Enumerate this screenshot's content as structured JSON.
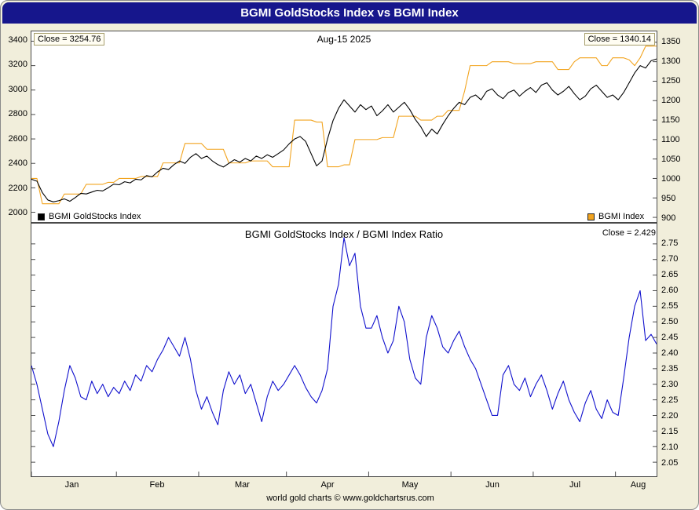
{
  "window": {
    "title": "BGMI GoldStocks Index vs BGMI Index"
  },
  "footer": {
    "text": "world gold charts © www.goldchartsrus.com"
  },
  "colors": {
    "background": "#f1eedb",
    "titlebar": "#16168c",
    "titlebar_text": "#ffffff",
    "plot_background": "#ffffff",
    "plot_border": "#4a4a4a",
    "goldstocks_line": "#000000",
    "bgmi_line": "#f2a41f",
    "ratio_line": "#1010cd"
  },
  "top_chart": {
    "close_left": "Close = 3254.76",
    "date_label": "Aug-15 2025",
    "close_right": "Close = 1340.14",
    "legend": [
      {
        "label": "BGMI GoldStocks Index",
        "color": "#000000"
      },
      {
        "label": "BGMI Index",
        "color": "#f2a41f"
      }
    ]
  },
  "bottom_chart": {
    "title": "BGMI GoldStocks Index  /  BGMI Index Ratio",
    "close_label": "Close = 2.429"
  },
  "x_axis": {
    "month_labels": [
      "Jan",
      "Feb",
      "Mar",
      "Apr",
      "May",
      "Jun",
      "Jul",
      "Aug"
    ]
  },
  "chart_data": [
    {
      "type": "line",
      "title": "BGMI GoldStocks Index vs BGMI Index",
      "subtitle": "Aug-15 2025",
      "x_unit": "trading days, Jan through Aug-15 2025",
      "n_points": 115,
      "month_start_indices": [
        0,
        15.5,
        30.5,
        46.5,
        61.5,
        76.5,
        91.5,
        106.5
      ],
      "month_label_indices": [
        7.5,
        23,
        38.5,
        54,
        69,
        84,
        99,
        110.5
      ],
      "left_ylim": [
        1920,
        3480
      ],
      "right_ylim": [
        888,
        1378
      ],
      "left_tick_labels": [
        "3400",
        "3200",
        "3000",
        "2800",
        "2600",
        "2400",
        "2200",
        "2000"
      ],
      "right_tick_labels": [
        "1350",
        "1300",
        "1250",
        "1200",
        "1150",
        "1100",
        "1050",
        "1000",
        "950",
        "900"
      ],
      "grid": false,
      "legend_position": "bottom-inside",
      "series": [
        {
          "name": "BGMI GoldStocks Index",
          "axis": "left",
          "color": "#000000",
          "close": 3254.76,
          "values": [
            2270,
            2255,
            2160,
            2100,
            2085,
            2095,
            2110,
            2090,
            2120,
            2155,
            2150,
            2165,
            2180,
            2175,
            2200,
            2230,
            2225,
            2250,
            2240,
            2270,
            2265,
            2300,
            2290,
            2330,
            2360,
            2350,
            2390,
            2420,
            2400,
            2450,
            2480,
            2440,
            2460,
            2420,
            2390,
            2370,
            2400,
            2430,
            2410,
            2440,
            2420,
            2460,
            2440,
            2470,
            2450,
            2480,
            2510,
            2560,
            2600,
            2620,
            2580,
            2480,
            2380,
            2420,
            2600,
            2750,
            2850,
            2920,
            2870,
            2820,
            2880,
            2840,
            2870,
            2790,
            2830,
            2880,
            2820,
            2860,
            2900,
            2840,
            2760,
            2700,
            2620,
            2680,
            2640,
            2720,
            2790,
            2850,
            2900,
            2880,
            2940,
            2960,
            2920,
            2990,
            3010,
            2960,
            2930,
            2980,
            3000,
            2950,
            2990,
            3020,
            2980,
            3040,
            3060,
            3000,
            2960,
            2990,
            3030,
            2970,
            2920,
            2950,
            3010,
            3040,
            2990,
            2940,
            2960,
            2920,
            2980,
            3060,
            3140,
            3200,
            3180,
            3240,
            3254.76
          ]
        },
        {
          "name": "BGMI Index",
          "axis": "right",
          "color": "#f2a41f",
          "close": 1340.14,
          "values": [
            1000,
            1000,
            935,
            935,
            935,
            935,
            960,
            960,
            960,
            960,
            985,
            985,
            985,
            985,
            990,
            990,
            1000,
            1000,
            1000,
            1000,
            1005,
            1005,
            1005,
            1005,
            1040,
            1040,
            1040,
            1040,
            1090,
            1090,
            1090,
            1090,
            1075,
            1075,
            1075,
            1075,
            1040,
            1040,
            1040,
            1040,
            1045,
            1045,
            1045,
            1045,
            1030,
            1030,
            1030,
            1030,
            1150,
            1150,
            1150,
            1150,
            1145,
            1145,
            1030,
            1030,
            1030,
            1035,
            1035,
            1100,
            1100,
            1100,
            1100,
            1100,
            1105,
            1105,
            1105,
            1160,
            1160,
            1160,
            1160,
            1150,
            1150,
            1150,
            1160,
            1160,
            1175,
            1175,
            1175,
            1225,
            1290,
            1290,
            1290,
            1290,
            1300,
            1300,
            1300,
            1300,
            1295,
            1295,
            1295,
            1295,
            1300,
            1300,
            1300,
            1300,
            1280,
            1280,
            1280,
            1300,
            1310,
            1310,
            1310,
            1310,
            1290,
            1290,
            1310,
            1310,
            1310,
            1305,
            1290,
            1310,
            1340,
            1340,
            1340.14
          ]
        }
      ]
    },
    {
      "type": "line",
      "title": "BGMI GoldStocks Index / BGMI Index Ratio",
      "n_points": 115,
      "ylim": [
        2.005,
        2.815
      ],
      "right_tick_labels": [
        "2.75",
        "2.70",
        "2.65",
        "2.60",
        "2.55",
        "2.50",
        "2.45",
        "2.40",
        "2.35",
        "2.30",
        "2.25",
        "2.20",
        "2.15",
        "2.10",
        "2.05"
      ],
      "grid": false,
      "series": [
        {
          "name": "GoldStocks / BGMI Ratio",
          "axis": "right",
          "color": "#1010cd",
          "close": 2.429,
          "values": [
            2.36,
            2.3,
            2.22,
            2.14,
            2.1,
            2.18,
            2.28,
            2.36,
            2.32,
            2.26,
            2.25,
            2.31,
            2.27,
            2.3,
            2.26,
            2.29,
            2.27,
            2.31,
            2.28,
            2.33,
            2.31,
            2.36,
            2.34,
            2.38,
            2.41,
            2.45,
            2.42,
            2.39,
            2.45,
            2.38,
            2.28,
            2.22,
            2.26,
            2.21,
            2.17,
            2.28,
            2.34,
            2.3,
            2.33,
            2.27,
            2.3,
            2.24,
            2.18,
            2.26,
            2.31,
            2.28,
            2.3,
            2.33,
            2.36,
            2.33,
            2.29,
            2.26,
            2.24,
            2.28,
            2.35,
            2.55,
            2.62,
            2.77,
            2.68,
            2.72,
            2.55,
            2.48,
            2.48,
            2.52,
            2.45,
            2.4,
            2.44,
            2.55,
            2.5,
            2.38,
            2.32,
            2.3,
            2.45,
            2.52,
            2.48,
            2.42,
            2.4,
            2.44,
            2.47,
            2.42,
            2.38,
            2.35,
            2.3,
            2.25,
            2.2,
            2.2,
            2.33,
            2.36,
            2.3,
            2.28,
            2.32,
            2.26,
            2.3,
            2.33,
            2.28,
            2.22,
            2.27,
            2.31,
            2.25,
            2.21,
            2.18,
            2.24,
            2.28,
            2.22,
            2.19,
            2.25,
            2.21,
            2.2,
            2.32,
            2.45,
            2.55,
            2.6,
            2.44,
            2.46,
            2.429
          ]
        }
      ]
    }
  ]
}
